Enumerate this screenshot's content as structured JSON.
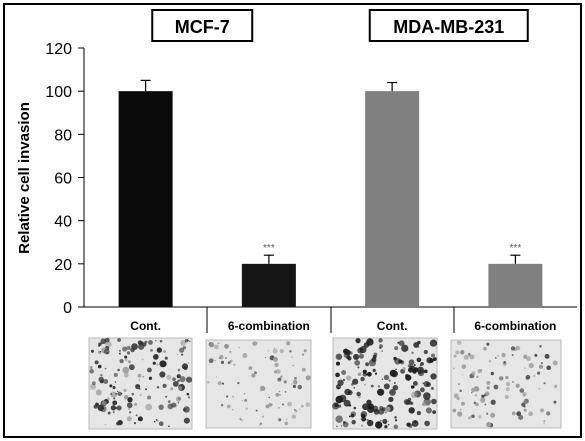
{
  "chart_data": {
    "type": "bar",
    "groups": [
      {
        "label": "MCF-7",
        "span": [
          0,
          1
        ]
      },
      {
        "label": "MDA-MB-231",
        "span": [
          2,
          3
        ]
      }
    ],
    "categories": [
      "Cont.",
      "6-combination",
      "Cont.",
      "6-combination"
    ],
    "values": [
      100,
      20,
      100,
      20
    ],
    "errors": [
      5,
      4,
      4,
      4
    ],
    "bar_colors": [
      "#0a0a0a",
      "#141414",
      "#808080",
      "#808080"
    ],
    "significance": [
      "",
      "***",
      "",
      "***"
    ],
    "ylabel": "Relative cell invasion",
    "xlabel": "",
    "ylim": [
      0,
      120
    ],
    "yticks": [
      0,
      20,
      40,
      60,
      80,
      100,
      120
    ],
    "grid": false,
    "micrographs": [
      {
        "icon": "micrograph-dense-cells",
        "density": 0.75,
        "tone": "#2b2b2b"
      },
      {
        "icon": "micrograph-sparse-cells",
        "density": 0.35,
        "tone": "#555555"
      },
      {
        "icon": "micrograph-dense-cells",
        "density": 0.9,
        "tone": "#1e1e1e"
      },
      {
        "icon": "micrograph-sparse-cells",
        "density": 0.4,
        "tone": "#4a4a4a"
      }
    ]
  }
}
